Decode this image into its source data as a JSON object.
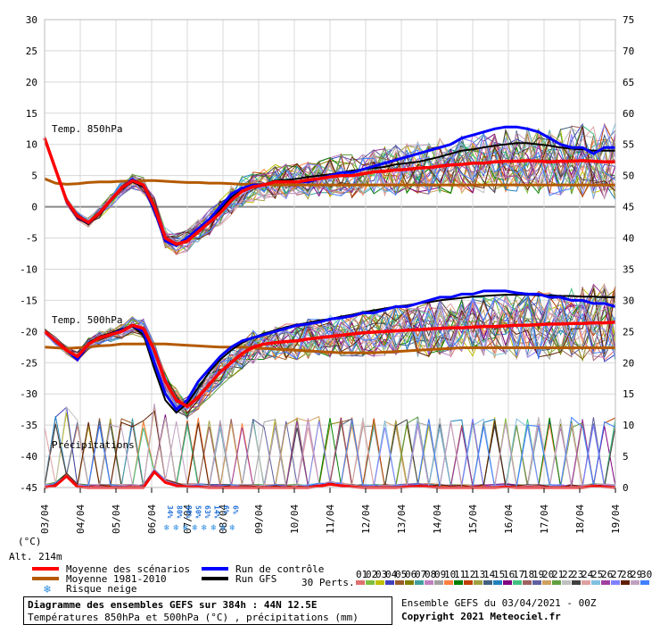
{
  "chart_data": {
    "type": "line",
    "x_dates": [
      "03/04",
      "04/04",
      "05/04",
      "06/04",
      "07/04",
      "08/04",
      "09/04",
      "10/04",
      "11/04",
      "12/04",
      "13/04",
      "14/04",
      "15/04",
      "16/04",
      "17/04",
      "18/04",
      "19/04"
    ],
    "x_axis_unit": "(°C)",
    "left_ticks": [
      30,
      25,
      20,
      15,
      10,
      5,
      0,
      -5,
      -10,
      -15,
      -20,
      -25,
      -30,
      -35,
      -40,
      -45
    ],
    "right_ticks": [
      75,
      70,
      65,
      60,
      55,
      50,
      45,
      40,
      35,
      30,
      25,
      20,
      15,
      10,
      5,
      0
    ],
    "panels": [
      {
        "label": "Temp. 850hPa"
      },
      {
        "label": "Temp. 500hPa"
      },
      {
        "label": "Précipitations"
      }
    ],
    "t850": {
      "mean": [
        11,
        6,
        1,
        -1.5,
        -2.5,
        -1,
        1,
        3,
        4.2,
        3.5,
        0,
        -5,
        -6,
        -5.5,
        -4,
        -2.5,
        -1,
        1,
        2.5,
        3.2,
        3.5,
        4,
        4,
        4,
        4.3,
        4.5,
        4.8,
        5,
        5,
        5.3,
        5.6,
        5.7,
        5.9,
        6,
        6.2,
        6.3,
        6.5,
        6.7,
        6.8,
        7,
        7,
        7.2,
        7.3,
        7.3,
        7.4,
        7.3,
        7.2,
        7.3,
        7.3,
        7.4,
        7.3,
        7.2,
        7.2
      ],
      "climo": [
        4.5,
        3.8,
        3.6,
        3.7,
        3.9,
        4,
        4,
        4.1,
        4.1,
        4.2,
        4.2,
        4.1,
        4,
        3.9,
        3.9,
        3.8,
        3.8,
        3.7,
        3.6,
        3.6,
        3.6,
        3.5,
        3.5,
        3.5,
        3.5,
        3.5,
        3.5,
        3.5,
        3.5,
        3.5,
        3.5,
        3.5,
        3.5,
        3.5,
        3.5,
        3.5,
        3.5,
        3.5,
        3.5,
        3.5,
        3.5,
        3.5,
        3.5,
        3.5,
        3.5,
        3.5,
        3.5,
        3.5,
        3.5,
        3.5,
        3.5,
        3.5,
        3.5
      ],
      "control": [
        11,
        6,
        1,
        -1.6,
        -2.6,
        -1,
        1,
        3,
        4.4,
        3.4,
        -0.5,
        -5.5,
        -6.2,
        -5,
        -3.5,
        -2,
        0,
        2,
        3,
        3.5,
        3.5,
        4,
        4,
        4,
        4,
        4.5,
        5,
        5.5,
        5.5,
        6,
        6.5,
        7,
        7.5,
        8,
        8.5,
        9,
        9.5,
        10,
        11,
        11.5,
        12,
        12.5,
        12.8,
        12.8,
        12.5,
        12,
        11,
        10,
        9.5,
        9.5,
        8.5,
        9.5,
        9.5
      ],
      "gfs": [
        11,
        6,
        0.8,
        -1.8,
        -2.8,
        -1.2,
        0.8,
        2.8,
        4,
        3.2,
        -0.8,
        -5.2,
        -6.3,
        -5.2,
        -3.8,
        -2.2,
        -0.5,
        1.5,
        2.8,
        3.2,
        3.6,
        4.2,
        4.3,
        4.5,
        4.8,
        5,
        5.2,
        5.5,
        5.8,
        6,
        6.2,
        6.4,
        6.8,
        7,
        7.2,
        7.6,
        8,
        8.5,
        9,
        9.2,
        9.5,
        9.8,
        10,
        10.2,
        10.2,
        10,
        9.8,
        9.5,
        9.3,
        9.2,
        9.0,
        9.0,
        9.0
      ],
      "max_perturbation": 17.5,
      "min_perturbation": -6.5
    },
    "t500": {
      "mean": [
        -20,
        -21.5,
        -23,
        -24,
        -22,
        -21,
        -20.5,
        -20,
        -19,
        -19.5,
        -23,
        -28,
        -31,
        -32,
        -30.5,
        -28.5,
        -26.5,
        -25,
        -23.5,
        -22.5,
        -22,
        -21.8,
        -21.6,
        -21.5,
        -21.2,
        -21,
        -20.8,
        -20.6,
        -20.4,
        -20.2,
        -20.1,
        -20,
        -19.9,
        -19.8,
        -19.7,
        -19.6,
        -19.5,
        -19.4,
        -19.4,
        -19.3,
        -19.2,
        -19.2,
        -19.1,
        -19,
        -19,
        -18.9,
        -18.8,
        -18.8,
        -18.7,
        -18.7,
        -18.6,
        -18.6,
        -18.5
      ],
      "climo": [
        -22.5,
        -22.6,
        -22.7,
        -22.6,
        -22.5,
        -22.3,
        -22.2,
        -22,
        -22,
        -22,
        -22,
        -22,
        -22.1,
        -22.2,
        -22.3,
        -22.4,
        -22.5,
        -22.5,
        -22.5,
        -22.6,
        -22.7,
        -22.8,
        -22.9,
        -23,
        -23.1,
        -23.2,
        -23.3,
        -23.4,
        -23.4,
        -23.4,
        -23.4,
        -23.3,
        -23.2,
        -23.1,
        -23,
        -22.9,
        -22.8,
        -22.7,
        -22.6,
        -22.6,
        -22.6,
        -22.6,
        -22.6,
        -22.6,
        -22.6,
        -22.6,
        -22.6,
        -22.6,
        -22.6,
        -22.6,
        -22.6,
        -22.6,
        -22.6
      ],
      "control": [
        -20,
        -21.5,
        -23,
        -24.5,
        -22,
        -21,
        -20.5,
        -19.8,
        -19,
        -20,
        -25,
        -30,
        -32.5,
        -31,
        -28,
        -26,
        -24,
        -22.5,
        -21.5,
        -21,
        -20.5,
        -20,
        -19.5,
        -19,
        -18.8,
        -18.5,
        -18,
        -17.8,
        -17.5,
        -17,
        -17,
        -16.5,
        -16,
        -16,
        -15.5,
        -15,
        -14.5,
        -14.5,
        -14,
        -14,
        -13.5,
        -13.5,
        -13.5,
        -13.8,
        -14,
        -14,
        -14.5,
        -14.5,
        -15,
        -15,
        -15.5,
        -15.5,
        -16
      ],
      "gfs": [
        -20,
        -21.5,
        -23,
        -24.2,
        -21.8,
        -20.8,
        -20.3,
        -19.6,
        -19.2,
        -20.5,
        -26,
        -31,
        -33,
        -31.5,
        -29,
        -26.5,
        -24.5,
        -23,
        -21.8,
        -21,
        -20.3,
        -19.8,
        -19.3,
        -18.9,
        -18.6,
        -18.2,
        -18,
        -17.6,
        -17.3,
        -16.9,
        -16.6,
        -16.3,
        -16,
        -15.8,
        -15.5,
        -15.3,
        -15,
        -14.8,
        -14.6,
        -14.4,
        -14.3,
        -14.2,
        -14.1,
        -14.1,
        -14.1,
        -14.2,
        -14.2,
        -14.3,
        -14.3,
        -14.4,
        -14.4,
        -14.5,
        -14.5
      ],
      "max_perturbation": -12.5,
      "min_perturbation": -35
    },
    "precip_mm": {
      "mean": [
        0,
        0.3,
        1.8,
        0.1,
        0,
        0,
        0,
        0,
        0,
        0,
        2.5,
        0.8,
        0.3,
        0.1,
        0.1,
        0,
        0,
        0,
        0,
        0,
        0,
        0,
        0,
        0,
        0,
        0.2,
        0.5,
        0.3,
        0.1,
        0,
        0,
        0,
        0,
        0.1,
        0.2,
        0.1,
        0,
        0,
        0,
        0,
        0,
        0,
        0.1,
        0,
        0,
        0,
        0,
        0,
        0,
        0,
        0.2,
        0.1,
        0
      ],
      "max_perturbation": 12.5
    },
    "snow_risk_pct": [
      "34%",
      "80%",
      "80%",
      "50%",
      "63%",
      "14%",
      "6%",
      "6%"
    ],
    "legend": [
      {
        "label": "Moyenne des scénarios",
        "color": "#ff0000"
      },
      {
        "label": "Moyenne 1981-2010",
        "color": "#b45a00"
      },
      {
        "label": "Risque neige",
        "color": "#2f8de0"
      },
      {
        "label": "Run de contrôle",
        "color": "#0000ff"
      },
      {
        "label": "Run GFS",
        "color": "#000000"
      }
    ],
    "perturbations": {
      "label": "30 Perts.",
      "ids": [
        "01",
        "02",
        "03",
        "04",
        "05",
        "06",
        "07",
        "08",
        "09",
        "10",
        "11",
        "12",
        "13",
        "14",
        "15",
        "16",
        "17",
        "18",
        "19",
        "20",
        "21",
        "22",
        "23",
        "24",
        "25",
        "26",
        "27",
        "28",
        "29",
        "30"
      ],
      "colors": [
        "#e07070",
        "#7fbf3f",
        "#c0c000",
        "#4040c0",
        "#9a5a2a",
        "#808000",
        "#40a0a0",
        "#c080c0",
        "#a0a0a0",
        "#ff8040",
        "#008000",
        "#c04000",
        "#a0a040",
        "#406080",
        "#2080c0",
        "#800080",
        "#40c080",
        "#a06060",
        "#6060a0",
        "#d0a060",
        "#60a040",
        "#c0c0c0",
        "#404040",
        "#e0a0a0",
        "#80c0e0",
        "#a040a0",
        "#8080ff",
        "#602000",
        "#c0a0c0",
        "#4080ff"
      ]
    }
  },
  "footer": {
    "title": "Diagramme des ensembles GEFS sur 384h : 44N 12.5E",
    "subtitle": "Températures 850hPa et 500hPa (°C) , précipitations (mm)",
    "run_info": "Ensemble GEFS du 03/04/2021 - 00Z",
    "copyright": "Copyright 2021 Meteociel.fr"
  },
  "altitude": "Alt. 214m"
}
